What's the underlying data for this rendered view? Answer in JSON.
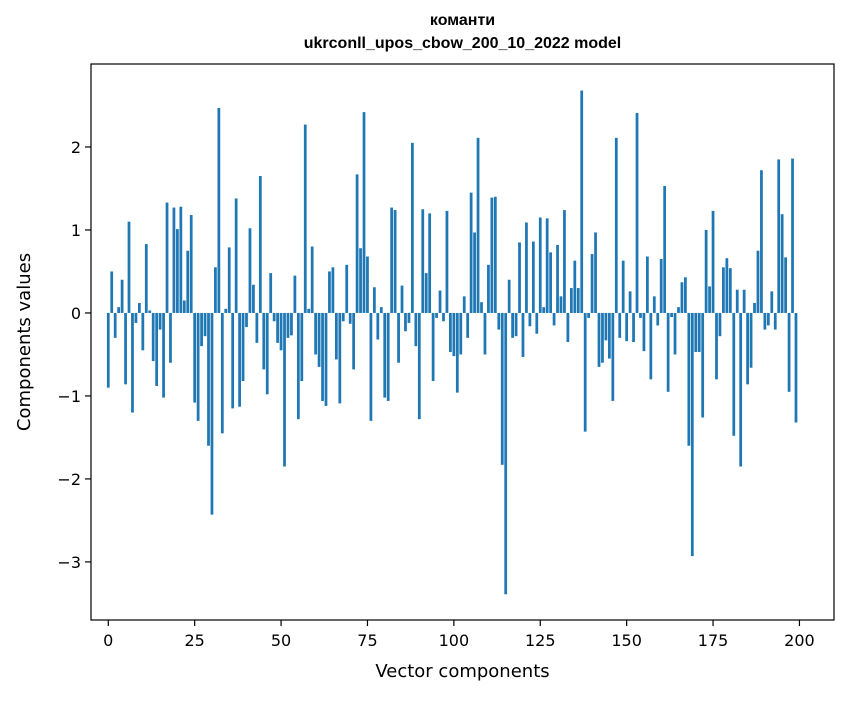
{
  "chart_data": {
    "type": "bar",
    "title": [
      "команти",
      "ukrconll_upos_cbow_200_10_2022 model"
    ],
    "xlabel": "Vector components",
    "ylabel": "Components values",
    "xlim": [
      -5,
      210
    ],
    "ylim": [
      -3.7,
      3.0
    ],
    "xticks": [
      0,
      25,
      50,
      75,
      100,
      125,
      150,
      175,
      200
    ],
    "xtick_labels": [
      "0",
      "25",
      "50",
      "75",
      "100",
      "125",
      "150",
      "175",
      "200"
    ],
    "yticks": [
      -3,
      -2,
      -1,
      0,
      1,
      2
    ],
    "ytick_labels": [
      "−3",
      "−2",
      "−1",
      "0",
      "1",
      "2"
    ],
    "grid": false,
    "bar_color": "#1f77b4",
    "x": [
      0,
      1,
      2,
      3,
      4,
      5,
      6,
      7,
      8,
      9,
      10,
      11,
      12,
      13,
      14,
      15,
      16,
      17,
      18,
      19,
      20,
      21,
      22,
      23,
      24,
      25,
      26,
      27,
      28,
      29,
      30,
      31,
      32,
      33,
      34,
      35,
      36,
      37,
      38,
      39,
      40,
      41,
      42,
      43,
      44,
      45,
      46,
      47,
      48,
      49,
      50,
      51,
      52,
      53,
      54,
      55,
      56,
      57,
      58,
      59,
      60,
      61,
      62,
      63,
      64,
      65,
      66,
      67,
      68,
      69,
      70,
      71,
      72,
      73,
      74,
      75,
      76,
      77,
      78,
      79,
      80,
      81,
      82,
      83,
      84,
      85,
      86,
      87,
      88,
      89,
      90,
      91,
      92,
      93,
      94,
      95,
      96,
      97,
      98,
      99,
      100,
      101,
      102,
      103,
      104,
      105,
      106,
      107,
      108,
      109,
      110,
      111,
      112,
      113,
      114,
      115,
      116,
      117,
      118,
      119,
      120,
      121,
      122,
      123,
      124,
      125,
      126,
      127,
      128,
      129,
      130,
      131,
      132,
      133,
      134,
      135,
      136,
      137,
      138,
      139,
      140,
      141,
      142,
      143,
      144,
      145,
      146,
      147,
      148,
      149,
      150,
      151,
      152,
      153,
      154,
      155,
      156,
      157,
      158,
      159,
      160,
      161,
      162,
      163,
      164,
      165,
      166,
      167,
      168,
      169,
      170,
      171,
      172,
      173,
      174,
      175,
      176,
      177,
      178,
      179,
      180,
      181,
      182,
      183,
      184,
      185,
      186,
      187,
      188,
      189,
      190,
      191,
      192,
      193,
      194,
      195,
      196,
      197,
      198,
      199
    ],
    "values": [
      -0.9,
      0.5,
      -0.3,
      0.07,
      0.4,
      -0.86,
      1.1,
      -1.2,
      -0.12,
      0.12,
      -0.45,
      0.83,
      0.03,
      -0.58,
      -0.88,
      -0.2,
      -1.02,
      1.33,
      -0.6,
      1.27,
      1.01,
      1.28,
      0.15,
      0.75,
      1.18,
      -1.08,
      -1.3,
      -0.4,
      -0.28,
      -1.6,
      -2.43,
      0.55,
      2.47,
      -1.45,
      0.05,
      0.79,
      -1.15,
      1.38,
      -1.13,
      -0.82,
      -0.17,
      1.02,
      0.34,
      -0.36,
      1.65,
      -0.68,
      -0.98,
      0.48,
      -0.1,
      -0.36,
      -0.45,
      -1.85,
      -0.3,
      -0.27,
      0.45,
      -1.28,
      -0.82,
      2.27,
      0.05,
      0.8,
      -0.5,
      -0.65,
      -1.06,
      -1.12,
      0.5,
      0.55,
      -0.56,
      -1.09,
      -0.1,
      0.58,
      -0.13,
      -0.68,
      1.67,
      0.78,
      2.42,
      0.68,
      -1.3,
      0.31,
      -0.32,
      0.07,
      -1.02,
      -1.06,
      1.27,
      1.24,
      -0.6,
      0.33,
      -0.22,
      -0.12,
      2.05,
      -0.4,
      -1.28,
      1.25,
      0.48,
      1.2,
      -0.82,
      -0.06,
      0.27,
      -0.1,
      1.23,
      -0.47,
      -0.52,
      -0.96,
      -0.5,
      0.2,
      -0.3,
      1.45,
      0.97,
      2.11,
      0.13,
      -0.5,
      0.58,
      1.39,
      1.4,
      -0.2,
      -1.83,
      -3.39,
      0.4,
      -0.3,
      -0.28,
      0.85,
      -0.53,
      1.09,
      -0.16,
      0.86,
      -0.25,
      1.15,
      0.07,
      1.14,
      0.73,
      -0.15,
      0.82,
      0.2,
      1.24,
      -0.35,
      0.3,
      0.63,
      0.3,
      2.68,
      -1.43,
      -0.06,
      0.71,
      0.97,
      -0.65,
      -0.6,
      -0.33,
      -0.55,
      -1.06,
      2.11,
      -0.3,
      0.63,
      -0.34,
      0.26,
      -0.35,
      2.41,
      -0.06,
      -0.46,
      0.68,
      -0.8,
      0.2,
      -0.15,
      0.65,
      1.53,
      -0.95,
      -0.05,
      -0.5,
      0.07,
      0.37,
      0.43,
      -1.6,
      -2.93,
      -0.47,
      -0.47,
      -1.26,
      1.0,
      0.32,
      1.23,
      -0.8,
      -0.28,
      0.55,
      0.66,
      0.54,
      -1.48,
      0.28,
      -1.85,
      0.28,
      -0.86,
      -0.66,
      0.12,
      0.75,
      1.72,
      -0.2,
      -0.15,
      0.26,
      -0.2,
      1.85,
      1.19,
      0.67,
      -0.95,
      1.86,
      -1.32
    ]
  }
}
